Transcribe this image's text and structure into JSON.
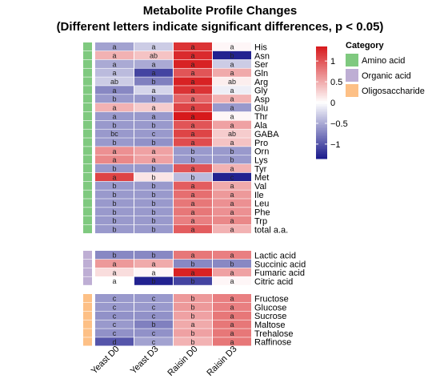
{
  "chart_data": {
    "type": "heatmap",
    "title": "Metabolite Profile Changes",
    "subtitle": "(Different letters indicate significant differences, p < 0.05)",
    "columns": [
      "Yeast D0",
      "Yeast D3",
      "Raisin D0",
      "Raisin D3"
    ],
    "color_scale": {
      "range": [
        -1.35,
        1.35
      ],
      "ticks": [
        1,
        0.5,
        0,
        -0.5,
        -1
      ],
      "tick_labels": [
        "1",
        "0.5",
        "0",
        "−0.5",
        "−1"
      ],
      "low_color": "#1a1a8c",
      "mid_color": "#ffffff",
      "high_color": "#d7191c"
    },
    "legend": {
      "title": "Category",
      "entries": [
        {
          "label": "Amino acid",
          "color": "#7fc97f"
        },
        {
          "label": "Organic acid",
          "color": "#beaed4"
        },
        {
          "label": "Oligosaccharide",
          "color": "#fdc086"
        }
      ]
    },
    "rows": [
      {
        "name": "His",
        "category": "Amino acid",
        "values": [
          -0.55,
          -0.3,
          1.2,
          0.05
        ],
        "letters": [
          "a",
          "a",
          "a",
          "a"
        ]
      },
      {
        "name": "Asn",
        "category": "Amino acid",
        "values": [
          0.45,
          0.35,
          1.25,
          -1.3
        ],
        "letters": [
          "a",
          "ab",
          "a",
          "b"
        ]
      },
      {
        "name": "Ser",
        "category": "Amino acid",
        "values": [
          -0.5,
          -0.5,
          1.3,
          -0.3
        ],
        "letters": [
          "a",
          "a",
          "a",
          "a"
        ]
      },
      {
        "name": "Gln",
        "category": "Amino acid",
        "values": [
          -0.4,
          -1.1,
          1.0,
          0.5
        ],
        "letters": [
          "a",
          "a",
          "a",
          "a"
        ]
      },
      {
        "name": "Arg",
        "category": "Amino acid",
        "values": [
          -0.3,
          -0.75,
          1.3,
          0.1
        ],
        "letters": [
          "ab",
          "b",
          "a",
          "ab"
        ]
      },
      {
        "name": "Gly",
        "category": "Amino acid",
        "values": [
          -0.7,
          -0.25,
          1.2,
          -0.1
        ],
        "letters": [
          "a",
          "a",
          "a",
          "a"
        ]
      },
      {
        "name": "Asp",
        "category": "Amino acid",
        "values": [
          -0.6,
          -0.6,
          0.9,
          0.45
        ],
        "letters": [
          "b",
          "b",
          "a",
          "a"
        ]
      },
      {
        "name": "Glu",
        "category": "Amino acid",
        "values": [
          0.45,
          0.3,
          1.1,
          -0.6
        ],
        "letters": [
          "a",
          "a",
          "a",
          "a"
        ]
      },
      {
        "name": "Thr",
        "category": "Amino acid",
        "values": [
          -0.6,
          -0.6,
          1.35,
          0.05
        ],
        "letters": [
          "a",
          "a",
          "a",
          "a"
        ]
      },
      {
        "name": "Ala",
        "category": "Amino acid",
        "values": [
          -0.6,
          -0.6,
          1.0,
          0.55
        ],
        "letters": [
          "b",
          "b",
          "a",
          "a"
        ]
      },
      {
        "name": "GABA",
        "category": "Amino acid",
        "values": [
          -0.6,
          -0.6,
          1.1,
          0.3
        ],
        "letters": [
          "bc",
          "c",
          "a",
          "ab"
        ]
      },
      {
        "name": "Pro",
        "category": "Amino acid",
        "values": [
          -0.6,
          -0.65,
          1.05,
          0.35
        ],
        "letters": [
          "b",
          "b",
          "a",
          "a"
        ]
      },
      {
        "name": "Orn",
        "category": "Amino acid",
        "values": [
          0.65,
          0.55,
          -0.6,
          -0.6
        ],
        "letters": [
          "a",
          "a",
          "b",
          "b"
        ]
      },
      {
        "name": "Lys",
        "category": "Amino acid",
        "values": [
          0.7,
          0.55,
          -0.6,
          -0.6
        ],
        "letters": [
          "a",
          "a",
          "b",
          "b"
        ]
      },
      {
        "name": "Tyr",
        "category": "Amino acid",
        "values": [
          -0.6,
          -0.6,
          1.0,
          0.45
        ],
        "letters": [
          "b",
          "b",
          "a",
          "a"
        ]
      },
      {
        "name": "Met",
        "category": "Amino acid",
        "values": [
          1.1,
          0.15,
          -0.4,
          -1.3
        ],
        "letters": [
          "a",
          "b",
          "b",
          "c"
        ]
      },
      {
        "name": "Val",
        "category": "Amino acid",
        "values": [
          -0.6,
          -0.6,
          0.95,
          0.5
        ],
        "letters": [
          "b",
          "b",
          "a",
          "a"
        ]
      },
      {
        "name": "Ile",
        "category": "Amino acid",
        "values": [
          -0.6,
          -0.6,
          0.85,
          0.6
        ],
        "letters": [
          "b",
          "b",
          "a",
          "a"
        ]
      },
      {
        "name": "Leu",
        "category": "Amino acid",
        "values": [
          -0.6,
          -0.6,
          0.8,
          0.65
        ],
        "letters": [
          "b",
          "b",
          "a",
          "a"
        ]
      },
      {
        "name": "Phe",
        "category": "Amino acid",
        "values": [
          -0.6,
          -0.6,
          0.8,
          0.65
        ],
        "letters": [
          "b",
          "b",
          "a",
          "a"
        ]
      },
      {
        "name": "Trp",
        "category": "Amino acid",
        "values": [
          -0.6,
          -0.6,
          0.75,
          0.7
        ],
        "letters": [
          "b",
          "b",
          "a",
          "a"
        ]
      },
      {
        "name": "total a.a.",
        "category": "Amino acid",
        "values": [
          -0.6,
          -0.6,
          0.95,
          0.45
        ],
        "letters": [
          "b",
          "b",
          "a",
          "a"
        ]
      },
      {
        "name": "Lactic acid",
        "category": "Organic acid",
        "values": [
          -0.7,
          -0.7,
          0.8,
          0.75
        ],
        "letters": [
          "b",
          "b",
          "a",
          "a"
        ]
      },
      {
        "name": "Succinic acid",
        "category": "Organic acid",
        "values": [
          0.6,
          0.5,
          -0.7,
          -0.7
        ],
        "letters": [
          "a",
          "a",
          "b",
          "b"
        ]
      },
      {
        "name": "Fumaric acid",
        "category": "Organic acid",
        "values": [
          0.2,
          0.05,
          1.3,
          0.55
        ],
        "letters": [
          "a",
          "a",
          "a",
          "a"
        ]
      },
      {
        "name": "Citric acid",
        "category": "Organic acid",
        "values": [
          0.0,
          -1.3,
          -1.1,
          0.05
        ],
        "letters": [
          "a",
          "b",
          "b",
          "a"
        ]
      },
      {
        "name": "Fructose",
        "category": "Oligosaccharide",
        "values": [
          -0.6,
          -0.6,
          0.6,
          0.75
        ],
        "letters": [
          "c",
          "c",
          "b",
          "a"
        ]
      },
      {
        "name": "Glucose",
        "category": "Oligosaccharide",
        "values": [
          -0.6,
          -0.6,
          0.6,
          0.75
        ],
        "letters": [
          "c",
          "c",
          "b",
          "a"
        ]
      },
      {
        "name": "Sucrose",
        "category": "Oligosaccharide",
        "values": [
          -0.65,
          -0.65,
          0.55,
          0.8
        ],
        "letters": [
          "c",
          "c",
          "b",
          "a"
        ]
      },
      {
        "name": "Maltose",
        "category": "Oligosaccharide",
        "values": [
          -0.6,
          -0.75,
          0.5,
          0.8
        ],
        "letters": [
          "c",
          "b",
          "a",
          "a"
        ]
      },
      {
        "name": "Trehalose",
        "category": "Oligosaccharide",
        "values": [
          -0.65,
          -0.65,
          0.55,
          0.8
        ],
        "letters": [
          "c",
          "c",
          "b",
          "a"
        ]
      },
      {
        "name": "Raffinose",
        "category": "Oligosaccharide",
        "values": [
          -1.0,
          -0.55,
          0.45,
          0.8
        ],
        "letters": [
          "d",
          "c",
          "b",
          "a"
        ]
      }
    ]
  }
}
